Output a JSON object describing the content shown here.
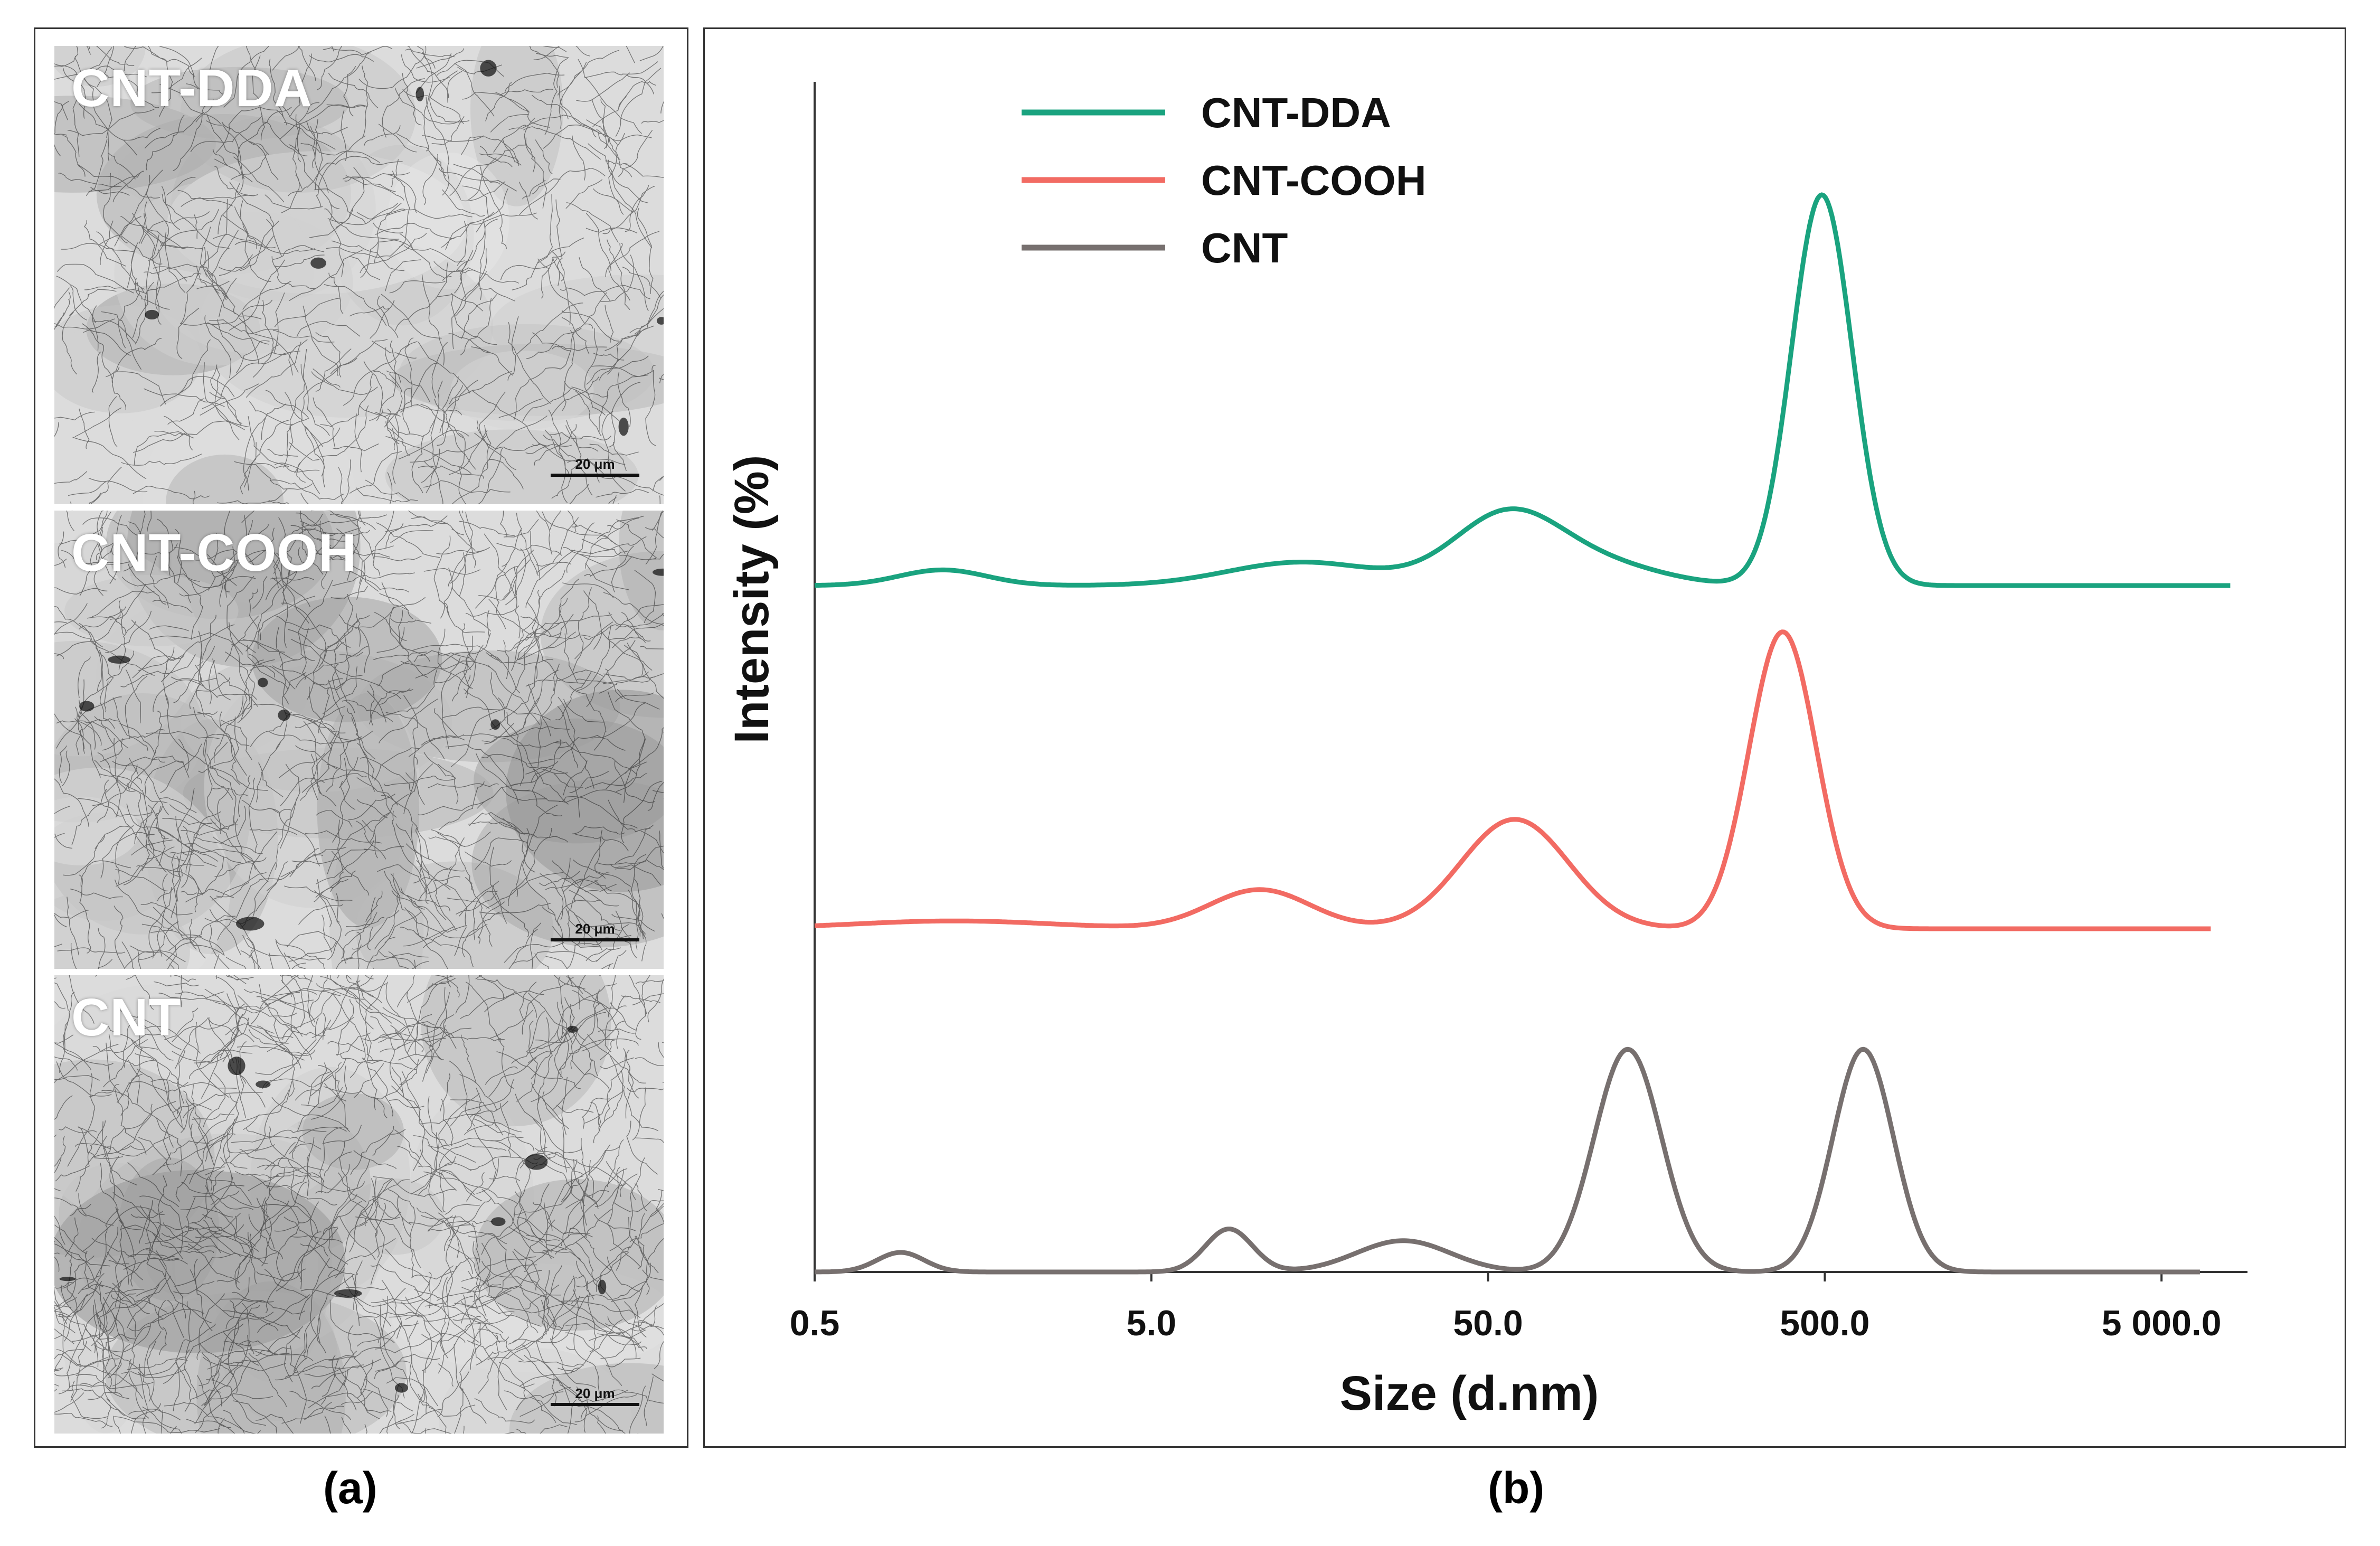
{
  "panel_a": {
    "caption": "(a)",
    "images": [
      {
        "label": "CNT-DDA",
        "scale": "20 μm"
      },
      {
        "label": "CNT-COOH",
        "scale": "20 μm"
      },
      {
        "label": "CNT",
        "scale": "20 μm"
      }
    ]
  },
  "panel_b": {
    "caption": "(b)"
  },
  "chart_data": {
    "type": "line",
    "title": "",
    "xlabel": "Size (d.nm)",
    "ylabel": "Intensity (%)",
    "xscale": "log",
    "xlim": [
      0.5,
      9000
    ],
    "xticks": [
      0.5,
      5.0,
      50.0,
      500.0,
      5000.0
    ],
    "xtick_labels": [
      "0.5",
      "5.0",
      "50.0",
      "500.0",
      "5 000.0"
    ],
    "y_ticks_shown": false,
    "legend_position": "top-left",
    "series": [
      {
        "name": "CNT-DDA",
        "color": "#1aa37f",
        "y_offset": 2.0,
        "x_end": 8000,
        "peaks": [
          [
            1.2,
            0.04,
            0.13
          ],
          [
            14.0,
            0.06,
            0.22
          ],
          [
            57.0,
            0.18,
            0.16
          ],
          [
            110.0,
            0.05,
            0.18
          ],
          [
            490.0,
            1.0,
            0.09
          ]
        ]
      },
      {
        "name": "CNT-COOH",
        "color": "#f26b63",
        "y_offset": 1.0,
        "x_end": 7000,
        "peaks": [
          [
            1.3,
            0.02,
            0.3
          ],
          [
            10.5,
            0.1,
            0.15
          ],
          [
            60.0,
            0.28,
            0.16
          ],
          [
            375.0,
            0.76,
            0.1
          ]
        ]
      },
      {
        "name": "CNT",
        "color": "#77706f",
        "y_offset": 0.0,
        "x_end": 6500,
        "peaks": [
          [
            0.9,
            0.05,
            0.07
          ],
          [
            8.5,
            0.11,
            0.07
          ],
          [
            28.0,
            0.08,
            0.14
          ],
          [
            130.0,
            0.57,
            0.1
          ],
          [
            650.0,
            0.57,
            0.09
          ]
        ]
      }
    ]
  }
}
